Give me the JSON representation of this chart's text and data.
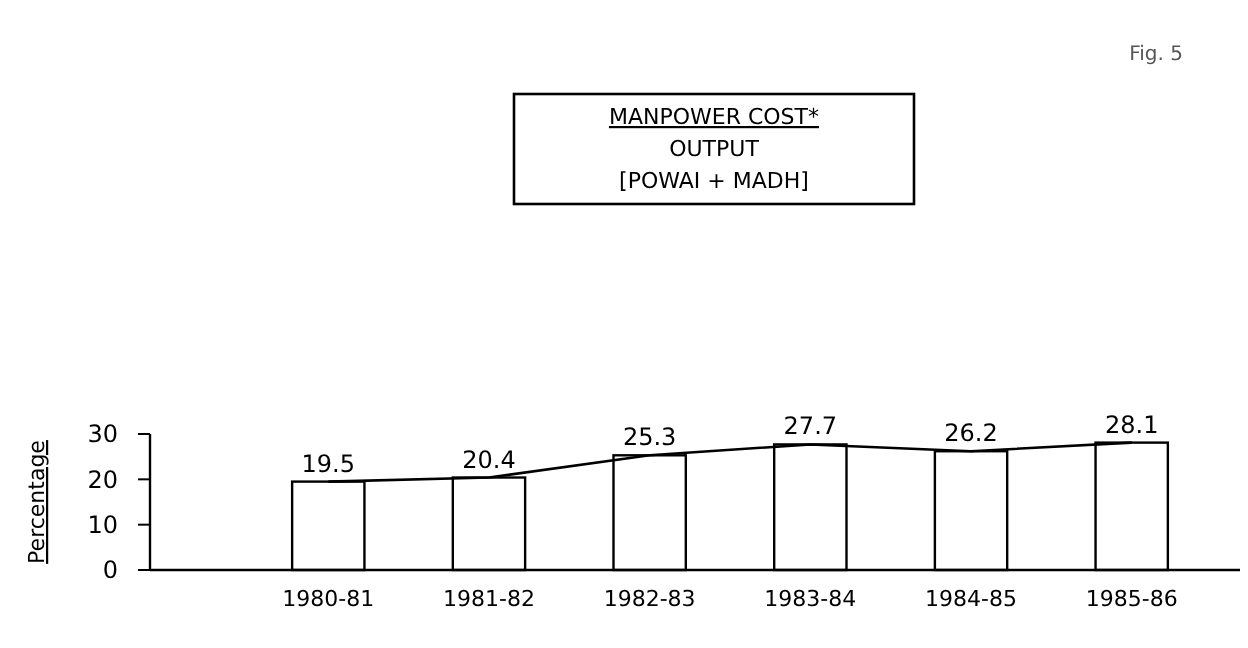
{
  "chart_data": {
    "type": "bar",
    "title": "MANPOWER COST*",
    "subtitle": "OUTPUT",
    "annotations": [
      "[POWAI + MADH]",
      "Fig. 5"
    ],
    "ylabel": "Percentage",
    "categories": [
      "1980-81",
      "1981-82",
      "1982-83",
      "1983-84",
      "1984-85",
      "1985-86"
    ],
    "series": [
      {
        "color": "#ffffff",
        "values": [
          19.5,
          20.4,
          25.3,
          27.7,
          26.2,
          28.1
        ],
        "value_labels": [
          "19.5",
          "20.4",
          "25.3",
          "27.7",
          "26.2",
          "28.1"
        ]
      },
      {
        "type": "line",
        "color": "#000000",
        "values": [
          19.5,
          20.4,
          25.3,
          27.7,
          26.2,
          28.1
        ]
      }
    ],
    "ylim": [
      0,
      30
    ],
    "yticks": [
      0,
      10,
      20,
      30
    ],
    "grid": false
  }
}
